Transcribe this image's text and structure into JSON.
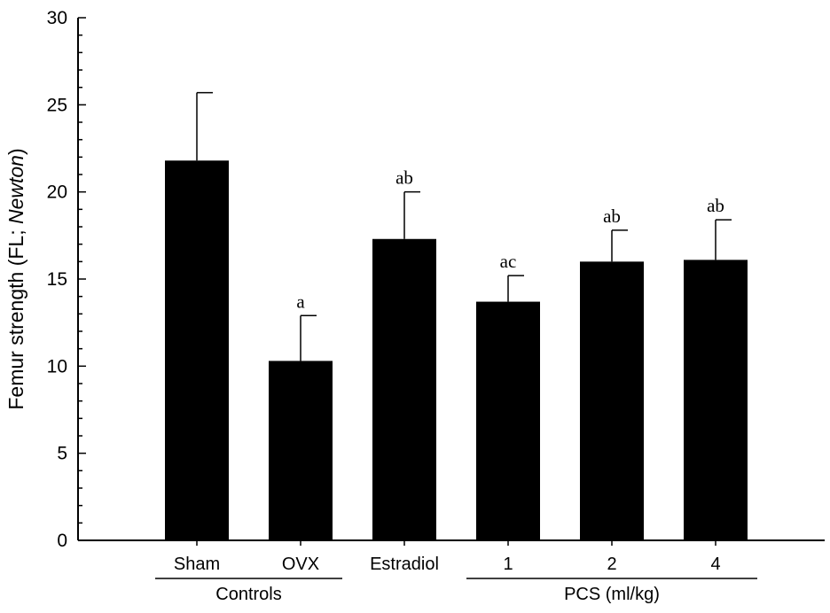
{
  "chart_data": {
    "type": "bar",
    "ylabel": {
      "prefix": "Femur strength (FL; ",
      "italic": "Newton",
      "suffix": ")"
    },
    "ylim": [
      0,
      30
    ],
    "yticks": [
      "0",
      "5",
      "10",
      "15",
      "20",
      "25",
      "30"
    ],
    "categories": [
      "Sham",
      "OVX",
      "Estradiol",
      "1",
      "2",
      "4"
    ],
    "values": [
      21.8,
      10.3,
      17.3,
      13.7,
      16.0,
      16.1
    ],
    "errors": [
      3.9,
      2.6,
      2.7,
      1.5,
      1.8,
      2.3
    ],
    "significance": [
      "",
      "a",
      "ab",
      "ac",
      "ab",
      "ab"
    ],
    "groups": [
      {
        "label": "Controls",
        "categories": [
          "Sham",
          "OVX"
        ]
      },
      {
        "label": "PCS (ml/kg)",
        "categories": [
          "1",
          "2",
          "4"
        ]
      }
    ],
    "grid": false
  }
}
